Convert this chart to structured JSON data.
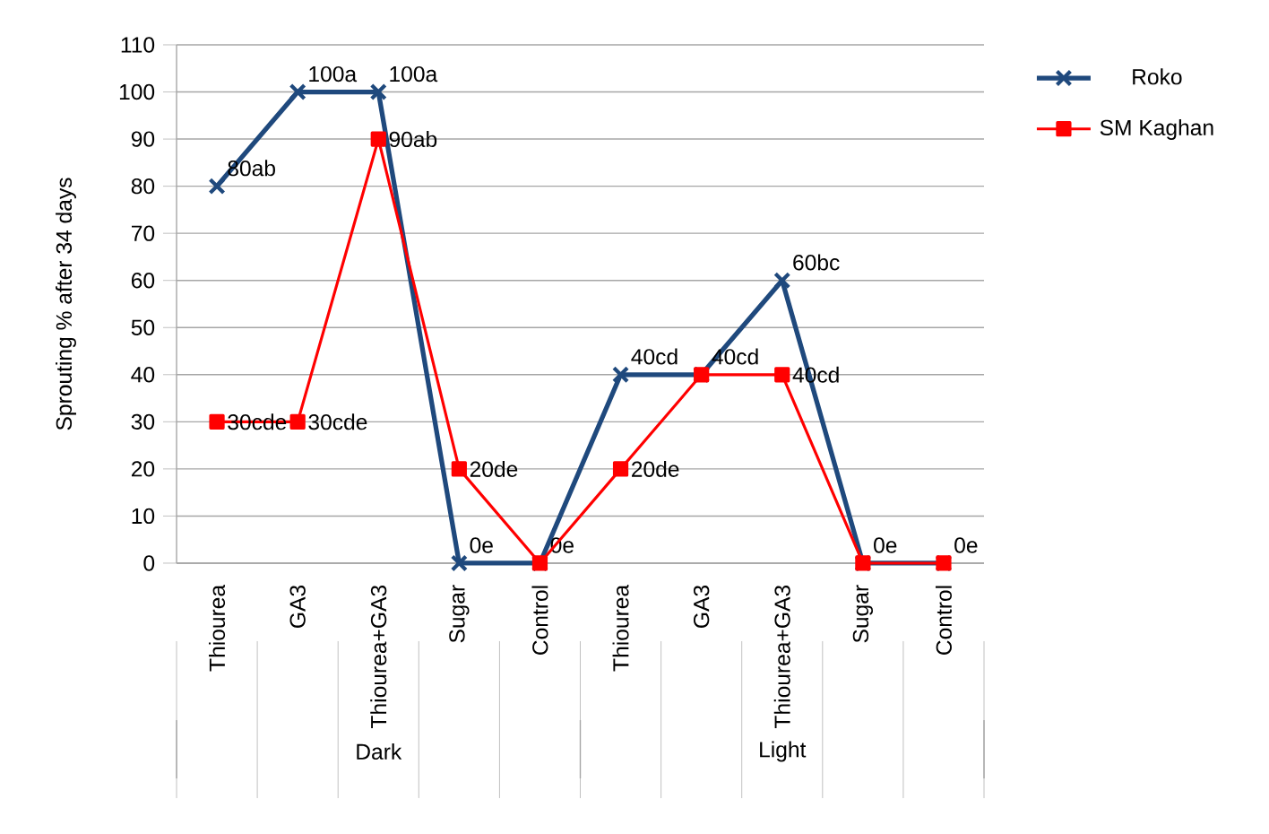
{
  "chart_data": {
    "type": "line",
    "ylabel": "Sprouting % after 34 days",
    "categories": [
      "Thiourea",
      "GA3",
      "Thiourea+GA3",
      "Sugar",
      "Control",
      "Thiourea",
      "GA3",
      "Thiourea+GA3",
      "Sugar",
      "Control"
    ],
    "annotations": [
      "Dark",
      "Light"
    ],
    "series": [
      {
        "name": "Roko",
        "color": "#1f497d",
        "marker": "cross",
        "values": [
          80,
          100,
          100,
          0,
          0,
          40,
          40,
          60,
          0,
          0
        ],
        "value_labels": [
          "80ab",
          "100a",
          "100a",
          "0e",
          "0e",
          "40cd",
          "40cd",
          "60bc",
          "0e",
          "0e"
        ]
      },
      {
        "name": "SM Kaghan",
        "color": "#ff0000",
        "marker": "square",
        "values": [
          30,
          30,
          90,
          20,
          0,
          20,
          40,
          40,
          0,
          0
        ],
        "value_labels": [
          "30cde",
          "30cde",
          "90ab",
          "20de",
          null,
          "20de",
          null,
          "40cd",
          null,
          null
        ]
      }
    ],
    "ylim": [
      0,
      110
    ],
    "yticks": [
      0,
      10,
      20,
      30,
      40,
      50,
      60,
      70,
      80,
      90,
      100,
      110
    ],
    "grid": "y",
    "legend": "right"
  }
}
